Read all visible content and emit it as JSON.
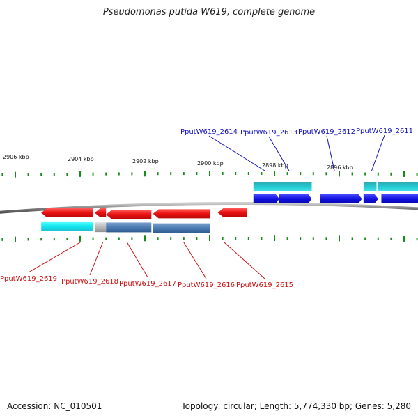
{
  "title": "Pseudomonas putida W619, complete genome",
  "footer": {
    "accession": "Accession: NC_010501",
    "summary": "Topology: circular; Length: 5,774,330 bp; Genes: 5,280"
  },
  "colors": {
    "forward_gene": "#1010e0",
    "forward_cds": "#20c0c8",
    "reverse_gene": "#e01010",
    "reverse_cds_cyan": "#10e8f0",
    "reverse_cds_steel": "#4a7ab0",
    "reverse_cds_gray": "#b0b0b0",
    "tick": "#1a8a1a",
    "backbone": "#808080",
    "forward_label": "#1010c0",
    "reverse_label": "#cc1010"
  },
  "axis": {
    "unit": "kbp",
    "labels": [
      {
        "kbp": 2906,
        "text": "2906 kbp"
      },
      {
        "kbp": 2904,
        "text": "2904 kbp"
      },
      {
        "kbp": 2902,
        "text": "2902 kbp"
      },
      {
        "kbp": 2900,
        "text": "2900 kbp"
      },
      {
        "kbp": 2898,
        "text": "2898 kbp"
      },
      {
        "kbp": 2896,
        "text": "2896 kbp"
      }
    ]
  },
  "forward_genes": [
    {
      "name": "PputW619_2614",
      "start_kbp": 2898.65,
      "end_kbp": 2897.85
    },
    {
      "name": "PputW619_2613",
      "start_kbp": 2897.85,
      "end_kbp": 2896.85
    },
    {
      "name": "PputW619_2612",
      "start_kbp": 2896.6,
      "end_kbp": 2895.3
    },
    {
      "name": "PputW619_2611",
      "start_kbp": 2895.25,
      "end_kbp": 2894.8
    },
    {
      "name": "",
      "start_kbp": 2894.7,
      "end_kbp": 2893.4
    }
  ],
  "forward_cds": [
    {
      "start_kbp": 2898.65,
      "end_kbp": 2897.85
    },
    {
      "start_kbp": 2897.85,
      "end_kbp": 2896.85
    },
    {
      "start_kbp": 2895.25,
      "end_kbp": 2894.85
    },
    {
      "start_kbp": 2894.8,
      "end_kbp": 2893.4
    }
  ],
  "reverse_genes": [
    {
      "name": "PputW619_2619",
      "start_kbp": 2905.2,
      "end_kbp": 2903.6
    },
    {
      "name": "PputW619_2618",
      "start_kbp": 2903.55,
      "end_kbp": 2903.2
    },
    {
      "name": "PputW619_2617",
      "start_kbp": 2903.2,
      "end_kbp": 2901.8
    },
    {
      "name": "PputW619_2616",
      "start_kbp": 2901.75,
      "end_kbp": 2900.0
    },
    {
      "name": "PputW619_2615",
      "start_kbp": 2899.75,
      "end_kbp": 2898.85
    }
  ],
  "reverse_cds": [
    {
      "start_kbp": 2905.2,
      "end_kbp": 2903.6,
      "color": "cyan"
    },
    {
      "start_kbp": 2903.55,
      "end_kbp": 2903.2,
      "color": "gray"
    },
    {
      "start_kbp": 2903.2,
      "end_kbp": 2901.8,
      "color": "steel"
    },
    {
      "start_kbp": 2901.75,
      "end_kbp": 2900.0,
      "color": "steel"
    }
  ],
  "forward_labels": [
    {
      "text": "PputW619_2614",
      "target_kbp": 2898.3
    },
    {
      "text": "PputW619_2613",
      "target_kbp": 2897.55
    },
    {
      "text": "PputW619_2612",
      "target_kbp": 2896.15
    },
    {
      "text": "PputW619_2611",
      "target_kbp": 2895.0
    }
  ],
  "reverse_labels": [
    {
      "text": "PputW619_2619",
      "target_kbp": 2904.0
    },
    {
      "text": "PputW619_2618",
      "target_kbp": 2903.3
    },
    {
      "text": "PputW619_2617",
      "target_kbp": 2902.55
    },
    {
      "text": "PputW619_2616",
      "target_kbp": 2900.8
    },
    {
      "text": "PputW619_2615",
      "target_kbp": 2899.55
    }
  ]
}
